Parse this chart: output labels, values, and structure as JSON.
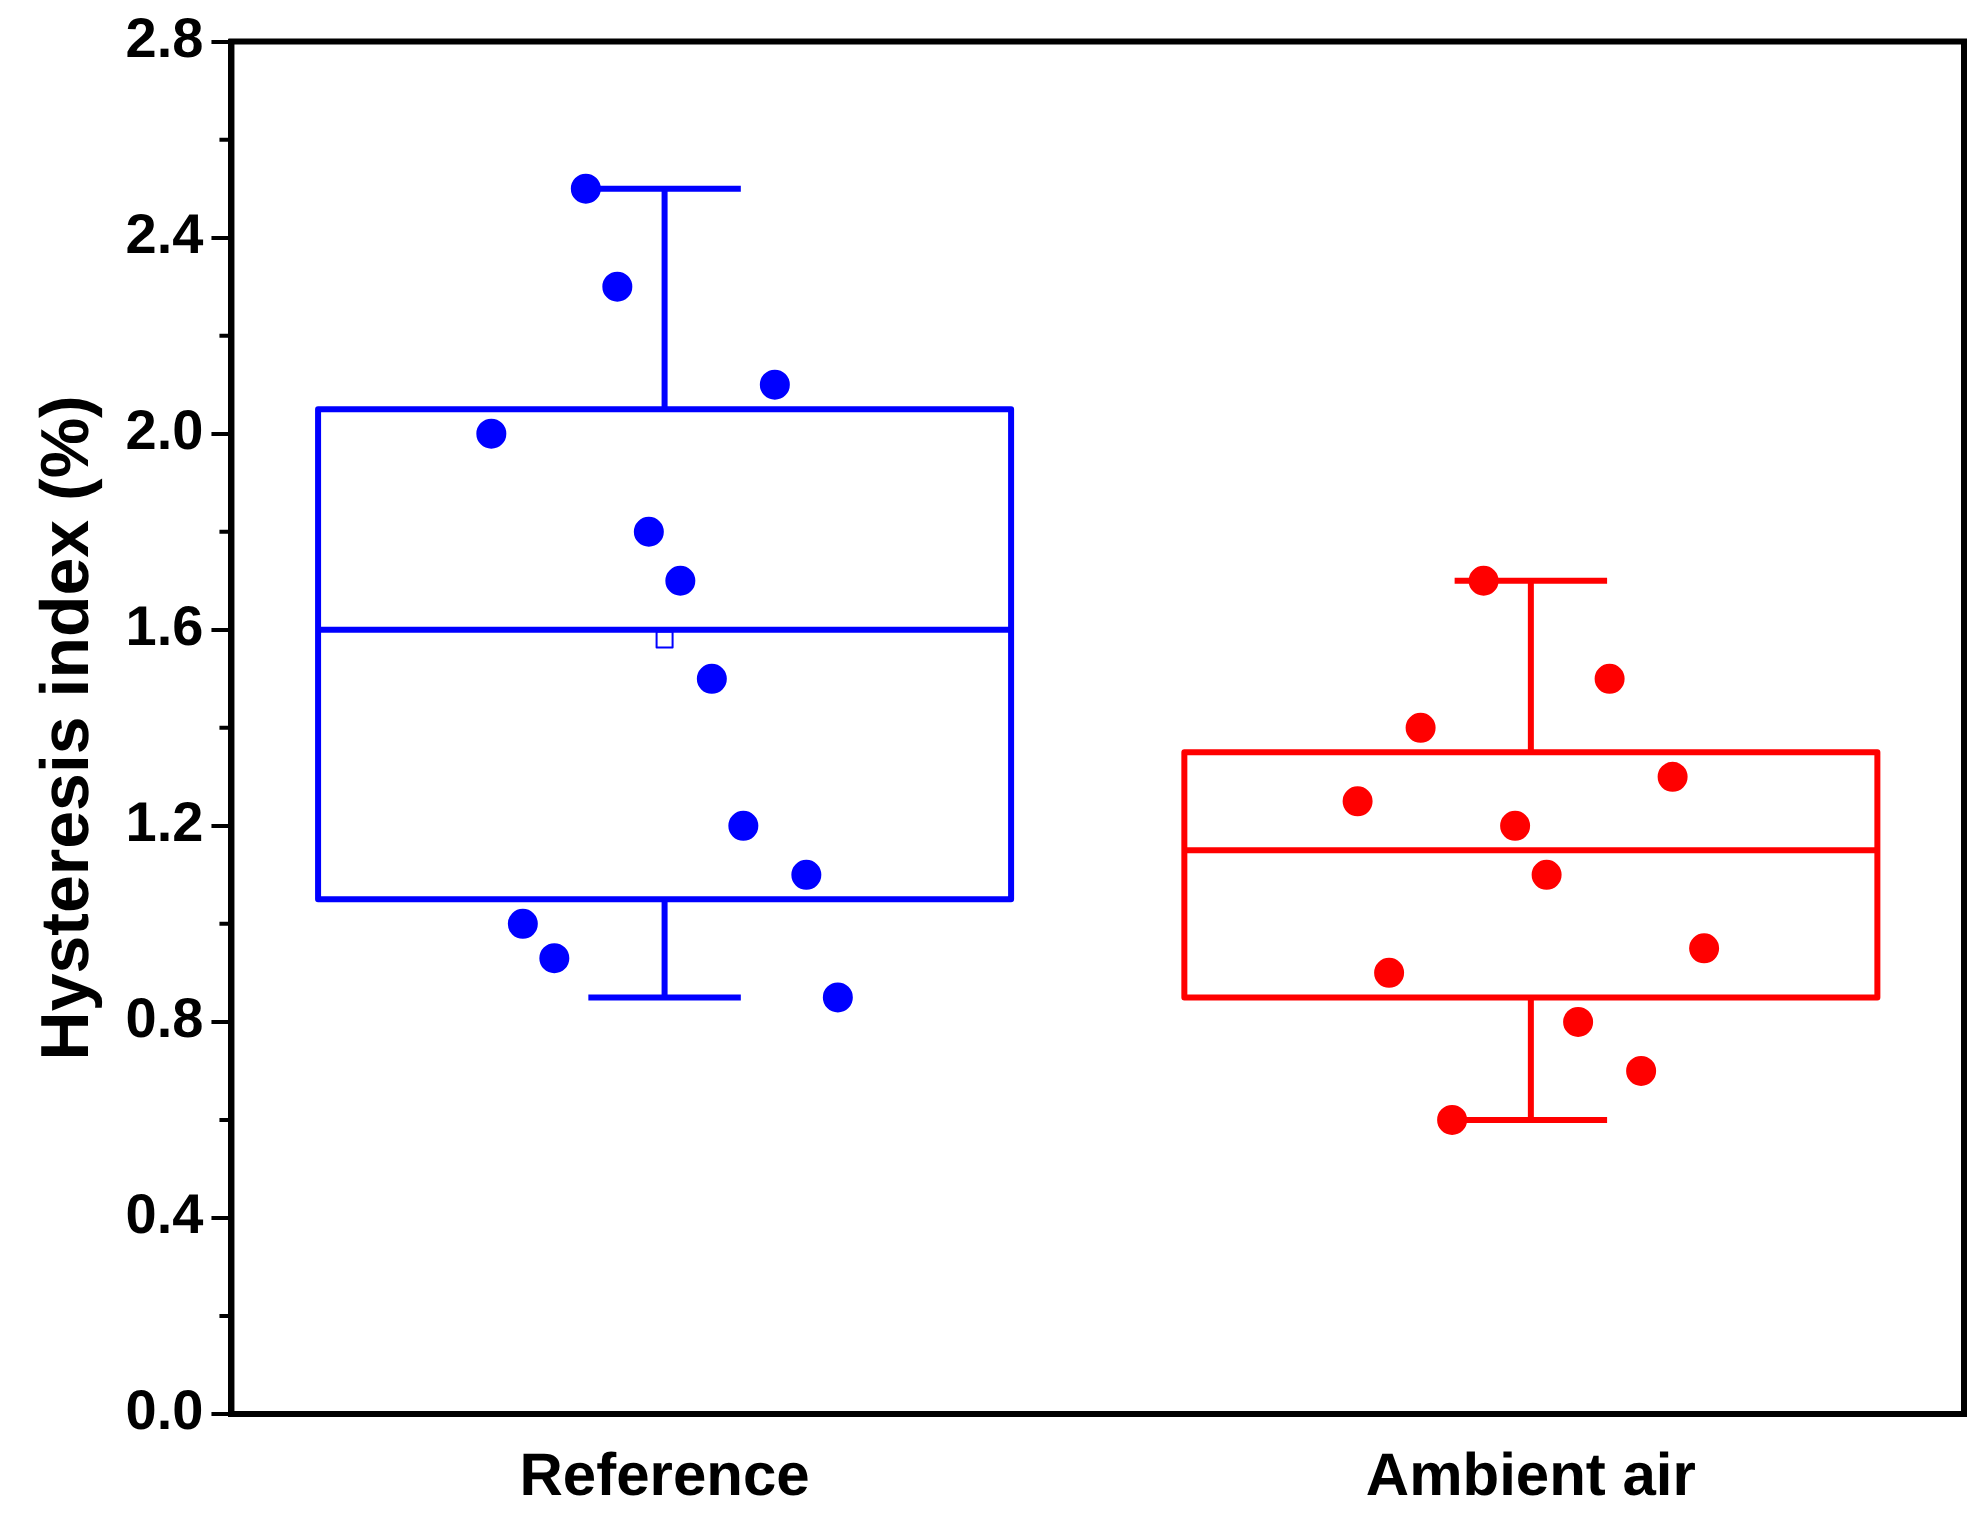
{
  "chart_data": {
    "type": "box",
    "ylabel": "Hysteresis index (%)",
    "categories": [
      "Reference",
      "Ambient air"
    ],
    "ylim": [
      0,
      2.8
    ],
    "yticks": [
      {
        "value": 0,
        "label": "0.0"
      },
      0.4,
      0.8,
      1.2,
      1.6,
      {
        "value": 2,
        "label": "2.0"
      },
      2.4,
      2.8
    ],
    "grid": false,
    "legend": false,
    "series": [
      {
        "colors": [
          "#0000ff",
          "#ff0000"
        ],
        "boxes": [
          {
            "low": 0.85,
            "q1": 1.05,
            "median": 1.6,
            "q3": 2.05,
            "high": 2.5,
            "mean": 1.58
          },
          {
            "low": 0.6,
            "q1": 0.85,
            "median": 1.15,
            "q3": 1.35,
            "high": 1.7
          }
        ]
      },
      {
        "type": "scatter",
        "marker": "circle",
        "x": [
          "Reference",
          "Reference",
          "Reference",
          "Reference",
          "Reference",
          "Reference",
          "Reference",
          "Reference",
          "Reference",
          "Reference",
          "Reference",
          "Reference",
          "Ambient air",
          "Ambient air",
          "Ambient air",
          "Ambient air",
          "Ambient air",
          "Ambient air",
          "Ambient air",
          "Ambient air",
          "Ambient air",
          "Ambient air",
          "Ambient air",
          "Ambient air"
        ],
        "values": [
          2.0,
          1.0,
          0.93,
          2.5,
          2.3,
          1.8,
          1.7,
          1.5,
          1.2,
          2.1,
          1.1,
          0.85,
          1.25,
          0.9,
          1.4,
          0.6,
          1.7,
          1.2,
          1.1,
          0.8,
          1.5,
          0.7,
          1.3,
          0.95
        ],
        "colors": [
          "#0000ff",
          "#0000ff",
          "#0000ff",
          "#0000ff",
          "#0000ff",
          "#0000ff",
          "#0000ff",
          "#0000ff",
          "#0000ff",
          "#0000ff",
          "#0000ff",
          "#0000ff",
          "#ff0000",
          "#ff0000",
          "#ff0000",
          "#ff0000",
          "#ff0000",
          "#ff0000",
          "#ff0000",
          "#ff0000",
          "#ff0000",
          "#ff0000",
          "#ff0000",
          "#ff0000"
        ]
      }
    ]
  }
}
